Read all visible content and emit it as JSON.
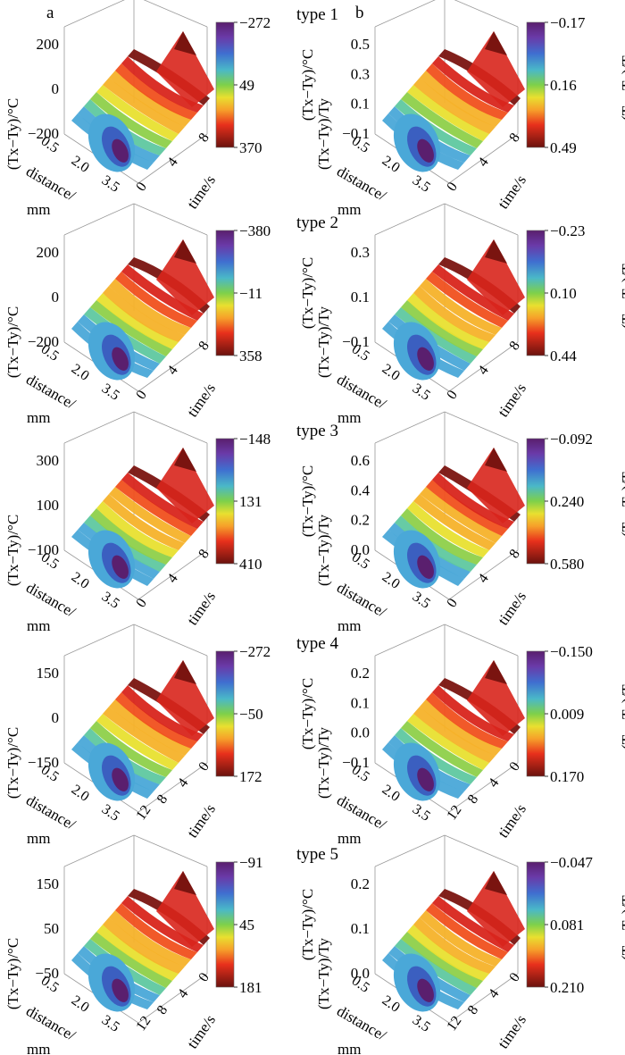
{
  "panel_letters": [
    "a",
    "b"
  ],
  "shared_axes": {
    "distance_ticks": [
      "0.5",
      "2.0",
      "3.5"
    ],
    "distance_label": "distance/ mm",
    "time_label": "time/s"
  },
  "colors": {
    "diverging": [
      "#5a1f6e",
      "#7b3fa0",
      "#3b5fc0",
      "#4aa8d8",
      "#5fc8a0",
      "#8ed04a",
      "#e8e030",
      "#f6b22a",
      "#f0501e",
      "#d8251c",
      "#7a1410"
    ]
  },
  "chart_data": [
    {
      "type": "surface3d",
      "title": "type 1",
      "panel": "a",
      "zlabel": "(Tx−Ty)/°C",
      "z_ticks": [
        "200",
        "0",
        "−200"
      ],
      "z_range": [
        -272,
        370
      ],
      "colorbar_ticks": [
        "−272",
        "49",
        "370"
      ],
      "colorbar_label": "(Tx−Ty)/°C",
      "distance_mm": [
        0.5,
        2.0,
        3.5
      ],
      "time_s": [
        0,
        4,
        8
      ],
      "time_ticks": [
        "0",
        "4",
        "8"
      ]
    },
    {
      "type": "surface3d",
      "title": "",
      "panel": "b",
      "zlabel": "(Tx−Ty)/Ty",
      "z_ticks": [
        "0.5",
        "0.3",
        "0.1",
        "−0.1"
      ],
      "z_range": [
        -0.17,
        0.49
      ],
      "colorbar_ticks": [
        "−0.17",
        "0.16",
        "0.49"
      ],
      "colorbar_label": "(Tx−Ty)/Ty",
      "distance_mm": [
        0.5,
        2.0,
        3.5
      ],
      "time_s": [
        0,
        4,
        8
      ],
      "time_ticks": [
        "0",
        "4",
        "8"
      ]
    },
    {
      "type": "surface3d",
      "title": "type 2",
      "panel": "a",
      "zlabel": "(Tx−Ty)/°C",
      "z_ticks": [
        "200",
        "0",
        "−200"
      ],
      "z_range": [
        -380,
        358
      ],
      "colorbar_ticks": [
        "−380",
        "−11",
        "358"
      ],
      "colorbar_label": "(Tx−Ty)/°C",
      "distance_mm": [
        0.5,
        2.0,
        3.5
      ],
      "time_s": [
        0,
        4,
        8
      ],
      "time_ticks": [
        "0",
        "4",
        "8"
      ]
    },
    {
      "type": "surface3d",
      "title": "",
      "panel": "b",
      "zlabel": "(Tx−Ty)/Ty",
      "z_ticks": [
        "0.3",
        "0.1",
        "−0.1"
      ],
      "z_range": [
        -0.23,
        0.44
      ],
      "colorbar_ticks": [
        "−0.23",
        "0.10",
        "0.44"
      ],
      "colorbar_label": "(Tx−Ty)/Ty",
      "distance_mm": [
        0.5,
        2.0,
        3.5
      ],
      "time_s": [
        0,
        4,
        8
      ],
      "time_ticks": [
        "0",
        "4",
        "8"
      ]
    },
    {
      "type": "surface3d",
      "title": "type 3",
      "panel": "a",
      "zlabel": "(Tx−Ty)/°C",
      "z_ticks": [
        "300",
        "100",
        "−100"
      ],
      "z_range": [
        -148,
        410
      ],
      "colorbar_ticks": [
        "−148",
        "131",
        "410"
      ],
      "colorbar_label": "(Tx−Ty)/°C",
      "distance_mm": [
        0.5,
        2.0,
        3.5
      ],
      "time_s": [
        0,
        4,
        8
      ],
      "time_ticks": [
        "0",
        "4",
        "8"
      ]
    },
    {
      "type": "surface3d",
      "title": "",
      "panel": "b",
      "zlabel": "(Tx−Ty)/Ty",
      "z_ticks": [
        "0.6",
        "0.4",
        "0.2",
        "0.0"
      ],
      "z_range": [
        -0.092,
        0.58
      ],
      "colorbar_ticks": [
        "−0.092",
        "0.240",
        "0.580"
      ],
      "colorbar_label": "(Tx−Ty)/Ty",
      "distance_mm": [
        0.5,
        2.0,
        3.5
      ],
      "time_s": [
        0,
        4,
        8
      ],
      "time_ticks": [
        "0",
        "4",
        "8"
      ]
    },
    {
      "type": "surface3d",
      "title": "type 4",
      "panel": "a",
      "zlabel": "(Tx−Ty)/°C",
      "z_ticks": [
        "150",
        "0",
        "−150"
      ],
      "z_range": [
        -272,
        172
      ],
      "colorbar_ticks": [
        "−272",
        "−50",
        "172"
      ],
      "colorbar_label": "(Tx−Ty)/°C",
      "distance_mm": [
        0.5,
        2.0,
        3.5
      ],
      "time_s": [
        0,
        4,
        8,
        12
      ],
      "time_ticks": [
        "12",
        "8",
        "4",
        "0"
      ]
    },
    {
      "type": "surface3d",
      "title": "",
      "panel": "b",
      "zlabel": "(Tx−Ty)/Ty",
      "z_ticks": [
        "0.2",
        "0.1",
        "0.0",
        "−0.1"
      ],
      "z_range": [
        -0.15,
        0.17
      ],
      "colorbar_ticks": [
        "−0.150",
        "0.009",
        "0.170"
      ],
      "colorbar_label": "(Tx−Ty)/Ty",
      "distance_mm": [
        0.5,
        2.0,
        3.5
      ],
      "time_s": [
        0,
        4,
        8,
        12
      ],
      "time_ticks": [
        "12",
        "8",
        "4",
        "0"
      ]
    },
    {
      "type": "surface3d",
      "title": "type 5",
      "panel": "a",
      "zlabel": "(Tx−Ty)/°C",
      "z_ticks": [
        "150",
        "50",
        "−50"
      ],
      "z_range": [
        -91,
        181
      ],
      "colorbar_ticks": [
        "−91",
        "45",
        "181"
      ],
      "colorbar_label": "(Tx−Ty)/°C",
      "distance_mm": [
        0.5,
        2.0,
        3.5
      ],
      "time_s": [
        0,
        4,
        8,
        12
      ],
      "time_ticks": [
        "12",
        "8",
        "4",
        "0"
      ]
    },
    {
      "type": "surface3d",
      "title": "",
      "panel": "b",
      "zlabel": "(Tx−Ty)/Ty",
      "z_ticks": [
        "0.2",
        "0.1",
        "0.0"
      ],
      "z_range": [
        -0.047,
        0.21
      ],
      "colorbar_ticks": [
        "−0.047",
        "0.081",
        "0.210"
      ],
      "colorbar_label": "(Tx−Ty)/Ty",
      "distance_mm": [
        0.5,
        2.0,
        3.5
      ],
      "time_s": [
        0,
        4,
        8,
        12
      ],
      "time_ticks": [
        "12",
        "8",
        "4",
        "0"
      ]
    }
  ]
}
